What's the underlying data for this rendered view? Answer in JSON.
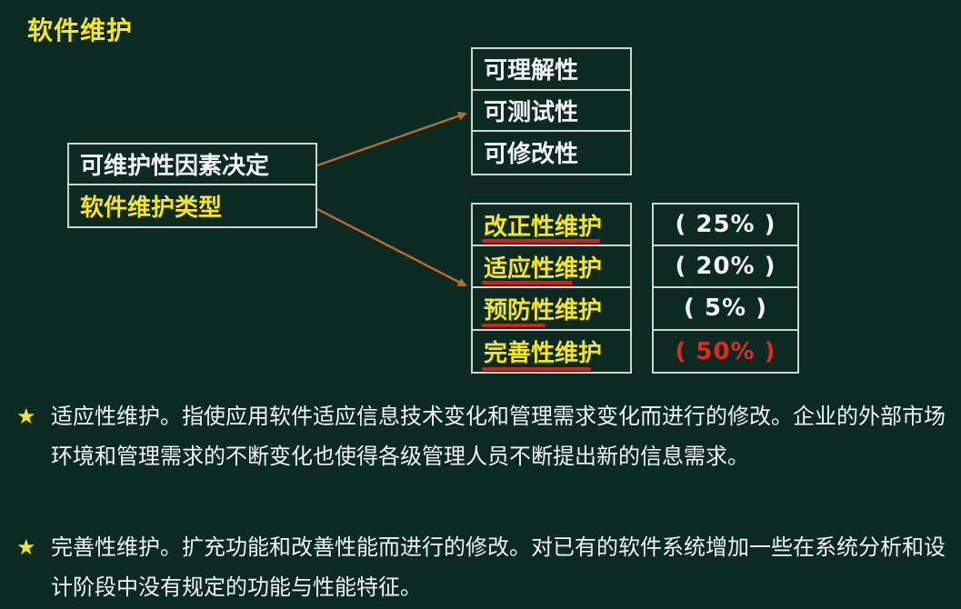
{
  "title": "软件维护",
  "left_box": {
    "row1": "可维护性因素决定",
    "row2": "软件维护类型"
  },
  "attributes": [
    "可理解性",
    "可测试性",
    "可修改性"
  ],
  "maintenance_types": [
    "改正性维护",
    "适应性维护",
    "预防性维护",
    "完善性维护"
  ],
  "percentages": [
    "( 25% )",
    "( 20% )",
    "( 5% )",
    "( 50% )"
  ],
  "colors": {
    "background": "#0d2a22",
    "highlight": "#f7e51e",
    "emphasis": "#e02a1c",
    "arrow": "#b86a2e"
  },
  "bullets": [
    "适应性维护。指使应用软件适应信息技术变化和管理需求变化而进行的修改。企业的外部市场环境和管理需求的不断变化也使得各级管理人员不断提出新的信息需求。",
    "完善性维护。扩充功能和改善性能而进行的修改。对已有的软件系统增加一些在系统分析和设计阶段中没有规定的功能与性能特征。"
  ]
}
